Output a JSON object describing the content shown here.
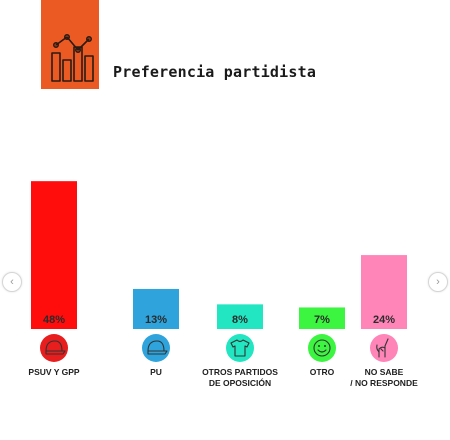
{
  "header": {
    "title": "Preferencia partidista",
    "brand_color": "#ec5a24",
    "icon": "bar-chart-trend-icon"
  },
  "navigation": {
    "prev_icon": "chevron-left-icon",
    "next_icon": "chevron-right-icon",
    "prev_symbol": "‹",
    "next_symbol": "›"
  },
  "chart_data": {
    "type": "bar",
    "title": "Preferencia partidista",
    "xlabel": "",
    "ylabel": "",
    "ylim": [
      0,
      50
    ],
    "grid": false,
    "legend": "none",
    "unit": "%",
    "categories": [
      {
        "lines": [
          "PSUV Y GPP"
        ],
        "value": 48,
        "label": "48%",
        "color": "#ff0d0d",
        "icon_color": "#e81e1e",
        "icon": "cap-icon"
      },
      {
        "lines": [
          "PU"
        ],
        "value": 13,
        "label": "13%",
        "color": "#2ea3dc",
        "icon_color": "#2ea3dc",
        "icon": "cap-icon"
      },
      {
        "lines": [
          "OTROS PARTIDOS",
          "DE OPOSICIÓN"
        ],
        "value": 8,
        "label": "8%",
        "color": "#21e6c1",
        "icon_color": "#21e6c1",
        "icon": "shirt-icon"
      },
      {
        "lines": [
          "OTRO"
        ],
        "value": 7,
        "label": "7%",
        "color": "#3cf540",
        "icon_color": "#3cf540",
        "icon": "smiley-icon"
      },
      {
        "lines": [
          "NO SABE",
          "/ NO RESPONDE"
        ],
        "value": 24,
        "label": "24%",
        "color": "#ff85b9",
        "icon_color": "#ff85b9",
        "icon": "pointing-hand-icon"
      }
    ]
  }
}
